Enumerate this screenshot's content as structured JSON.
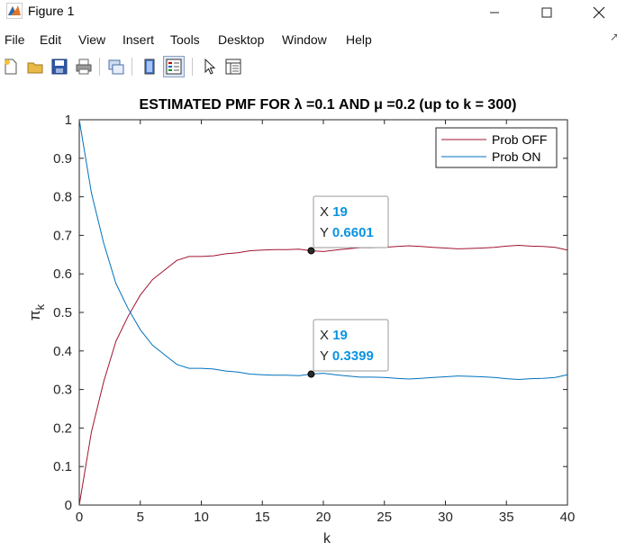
{
  "window": {
    "title": "Figure 1"
  },
  "menu": [
    "File",
    "Edit",
    "View",
    "Insert",
    "Tools",
    "Desktop",
    "Window",
    "Help"
  ],
  "toolbar": [
    "new-figure-icon",
    "open-file-icon",
    "save-icon",
    "print-icon",
    "link-plot-icon",
    "colorbar-icon",
    "legend-icon",
    "pointer-icon",
    "property-inspector-icon"
  ],
  "chart_data": {
    "type": "line",
    "title": "ESTIMATED PMF FOR λ =0.1 AND μ =0.2 (up to k = 300)",
    "xlabel": "k",
    "ylabel": "π_k",
    "xlim": [
      0,
      40
    ],
    "ylim": [
      0,
      1
    ],
    "xticks": [
      0,
      5,
      10,
      15,
      20,
      25,
      30,
      35,
      40
    ],
    "yticks": [
      0,
      0.1,
      0.2,
      0.3,
      0.4,
      0.5,
      0.6,
      0.7,
      0.8,
      0.9,
      1
    ],
    "grid": false,
    "legend": "top-right",
    "x": [
      0,
      1,
      2,
      3,
      4,
      5,
      6,
      7,
      8,
      9,
      10,
      11,
      12,
      13,
      14,
      15,
      16,
      17,
      18,
      19,
      20,
      21,
      22,
      23,
      24,
      25,
      26,
      27,
      28,
      29,
      30,
      31,
      32,
      33,
      34,
      35,
      36,
      37,
      38,
      39,
      40
    ],
    "series": [
      {
        "name": "Prob OFF",
        "color": "#a2142f",
        "values": [
          0.0,
          0.19,
          0.32,
          0.425,
          0.49,
          0.545,
          0.585,
          0.61,
          0.635,
          0.645,
          0.645,
          0.647,
          0.652,
          0.655,
          0.66,
          0.662,
          0.663,
          0.663,
          0.664,
          0.6601,
          0.658,
          0.662,
          0.665,
          0.668,
          0.668,
          0.669,
          0.671,
          0.673,
          0.671,
          0.669,
          0.667,
          0.665,
          0.666,
          0.667,
          0.669,
          0.672,
          0.674,
          0.672,
          0.671,
          0.669,
          0.662
        ]
      },
      {
        "name": "Prob ON",
        "color": "#0072bd",
        "values": [
          1.0,
          0.81,
          0.68,
          0.575,
          0.51,
          0.455,
          0.415,
          0.39,
          0.365,
          0.355,
          0.355,
          0.353,
          0.348,
          0.345,
          0.34,
          0.338,
          0.337,
          0.337,
          0.336,
          0.3399,
          0.342,
          0.338,
          0.335,
          0.332,
          0.332,
          0.331,
          0.329,
          0.327,
          0.329,
          0.331,
          0.333,
          0.335,
          0.334,
          0.333,
          0.331,
          0.328,
          0.326,
          0.328,
          0.329,
          0.331,
          0.338
        ]
      }
    ],
    "datatips": [
      {
        "x_label": "X",
        "x_value": "19",
        "y_label": "Y",
        "y_value": "0.6601",
        "x": 19,
        "y": 0.6601
      },
      {
        "x_label": "X",
        "x_value": "19",
        "y_label": "Y",
        "y_value": "0.3399",
        "x": 19,
        "y": 0.3399
      }
    ]
  }
}
